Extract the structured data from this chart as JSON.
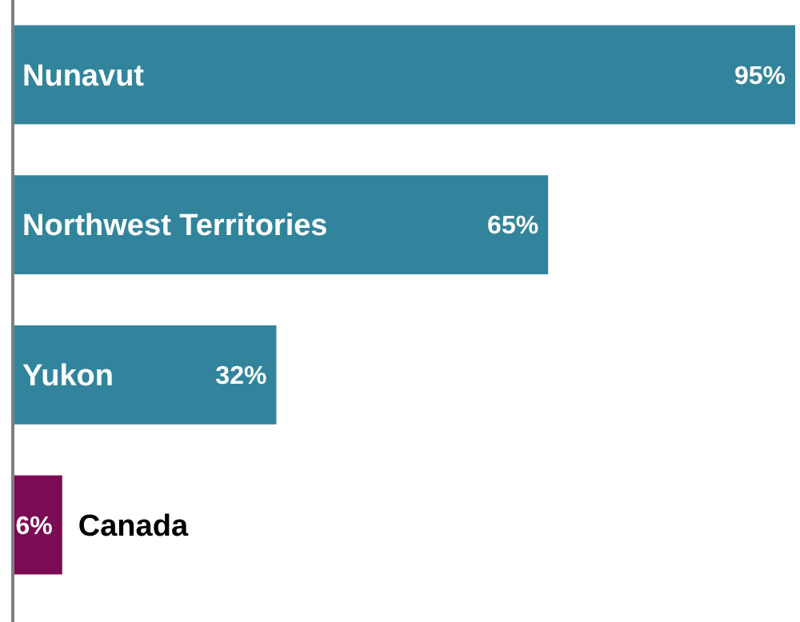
{
  "chart_data": {
    "type": "bar",
    "orientation": "horizontal",
    "categories": [
      "Nunavut",
      "Northwest Territories",
      "Yukon",
      "Canada"
    ],
    "values": [
      95,
      65,
      32,
      6
    ],
    "colors": [
      "#31849b",
      "#31849b",
      "#31849b",
      "#7b0b55"
    ],
    "data_labels": true,
    "value_labels": [
      "95%",
      "65%",
      "32%",
      "6%"
    ]
  }
}
